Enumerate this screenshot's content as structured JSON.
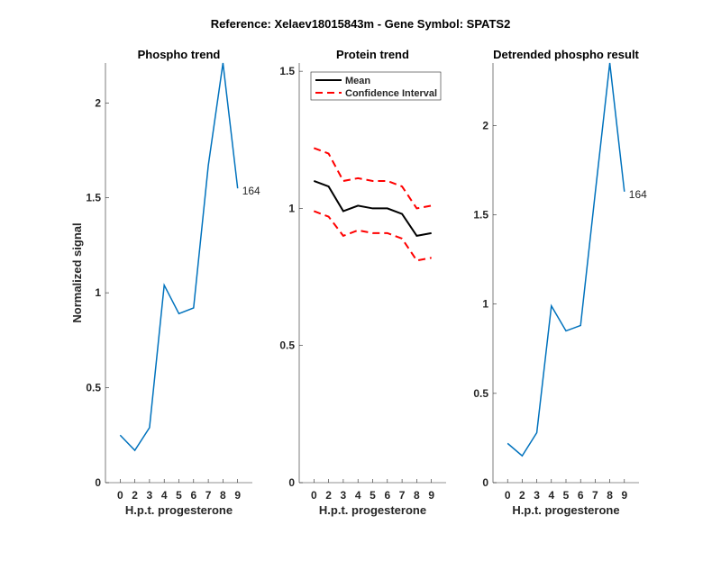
{
  "figure_title": "Reference:  Xelaev18015843m - Gene Symbol:  SPATS2",
  "chart_data": [
    {
      "type": "line",
      "title": "Phospho trend",
      "xlabel": "H.p.t. progesterone",
      "ylabel": "Normalized signal",
      "categories": [
        "0",
        "2",
        "3",
        "4",
        "5",
        "6",
        "7",
        "8",
        "9"
      ],
      "ylim": [
        0,
        2.21
      ],
      "yticks": [
        0,
        0.5,
        1,
        1.5,
        2
      ],
      "series": [
        {
          "values": [
            0.25,
            0.17,
            0.29,
            1.04,
            0.89,
            0.92,
            1.67,
            2.21,
            1.55
          ],
          "color": "#0072BD"
        }
      ],
      "end_label": "164"
    },
    {
      "type": "line",
      "title": "Protein trend",
      "xlabel": "H.p.t. progesterone",
      "ylabel": "",
      "categories": [
        "0",
        "2",
        "3",
        "4",
        "5",
        "6",
        "7",
        "8",
        "9"
      ],
      "ylim": [
        0,
        1.53
      ],
      "yticks": [
        0,
        0.5,
        1,
        1.5
      ],
      "legend": "top-left",
      "series": [
        {
          "name": "Mean",
          "values": [
            1.1,
            1.08,
            0.99,
            1.01,
            1.0,
            1.0,
            0.98,
            0.9,
            0.91
          ],
          "color": "#000000",
          "dash": false
        },
        {
          "name": "Confidence Interval",
          "values": [
            1.22,
            1.2,
            1.1,
            1.11,
            1.1,
            1.1,
            1.08,
            1.0,
            1.01
          ],
          "color": "#FF0000",
          "dash": true
        },
        {
          "values": [
            0.99,
            0.97,
            0.9,
            0.92,
            0.91,
            0.91,
            0.89,
            0.81,
            0.82
          ],
          "color": "#FF0000",
          "dash": true
        }
      ]
    },
    {
      "type": "line",
      "title": "Detrended phospho result",
      "xlabel": "H.p.t. progesterone",
      "ylabel": "",
      "categories": [
        "0",
        "2",
        "3",
        "4",
        "5",
        "6",
        "7",
        "8",
        "9"
      ],
      "ylim": [
        0,
        2.35
      ],
      "yticks": [
        0,
        0.5,
        1,
        1.5,
        2
      ],
      "series": [
        {
          "values": [
            0.22,
            0.15,
            0.28,
            0.99,
            0.85,
            0.88,
            1.62,
            2.35,
            1.63
          ],
          "color": "#0072BD"
        }
      ],
      "end_label": "164"
    }
  ]
}
